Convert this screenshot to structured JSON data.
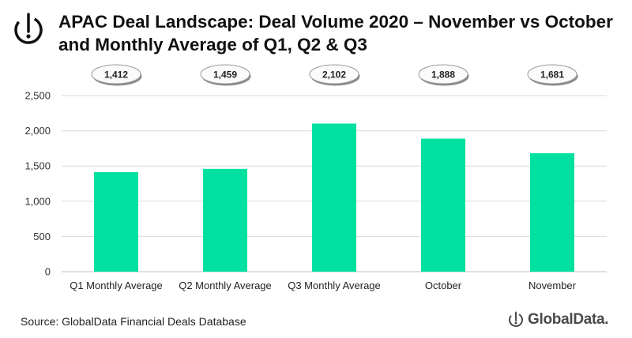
{
  "header": {
    "title_line1": "APAC Deal Landscape: Deal Volume 2020 – November vs October",
    "title_line2": "and Monthly Average of Q1, Q2 & Q3",
    "logo_icon": "globaldata-logo-icon"
  },
  "chart_data": {
    "type": "bar",
    "title": "APAC Deal Landscape: Deal Volume 2020 – November vs October and Monthly Average of Q1, Q2 & Q3",
    "categories": [
      "Q1 Monthly Average",
      "Q2 Monthly Average",
      "Q3 Monthly Average",
      "October",
      "November"
    ],
    "values": [
      1412,
      1459,
      2102,
      1888,
      1681
    ],
    "data_labels": [
      "1,412",
      "1,459",
      "2,102",
      "1,888",
      "1,681"
    ],
    "yticks": [
      "0",
      "500",
      "1,000",
      "1,500",
      "2,000",
      "2,500"
    ],
    "ylim": [
      0,
      2500
    ],
    "ytick_step": 500,
    "grid": true,
    "xlabel": "",
    "ylabel": "",
    "bar_color": "#00E0A0",
    "grid_color": "#D9D9D9",
    "axis_color": "#BFBFBF"
  },
  "footer": {
    "source": "Source: GlobalData Financial Deals Database",
    "brand": "GlobalData.",
    "brand_icon": "globaldata-brand-icon"
  }
}
